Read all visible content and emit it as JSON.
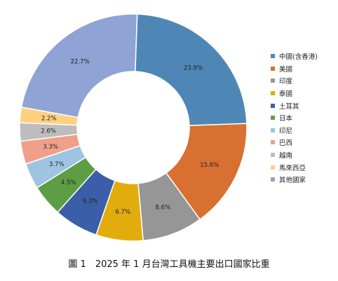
{
  "chart_data": {
    "type": "pie",
    "donut": true,
    "title": "",
    "categories": [
      "中國(含香港)",
      "美國",
      "印度",
      "泰國",
      "土耳其",
      "日本",
      "印尼",
      "巴西",
      "越南",
      "馬來西亞",
      "其他國家"
    ],
    "values": [
      23.9,
      15.6,
      8.6,
      6.7,
      6.3,
      4.5,
      3.7,
      3.3,
      2.6,
      2.2,
      22.7
    ],
    "labels": [
      "23.9%",
      "15.6%",
      "8.6%",
      "6.7%",
      "6.3%",
      "4.5%",
      "3.7%",
      "3.3%",
      "2.6%",
      "2.2%",
      "22.7%"
    ],
    "colors": [
      "#4e87b5",
      "#d87032",
      "#969696",
      "#e2ac0c",
      "#3b5ea8",
      "#5d9d43",
      "#9ec3e3",
      "#f0a08a",
      "#bdbdbd",
      "#ffd07f",
      "#8fa3d5"
    ],
    "legend_position": "right",
    "start_angle_deg": 2,
    "direction": "clockwise"
  },
  "caption": "圖 1　2025 年 1 月台灣工具機主要出口國家比重"
}
